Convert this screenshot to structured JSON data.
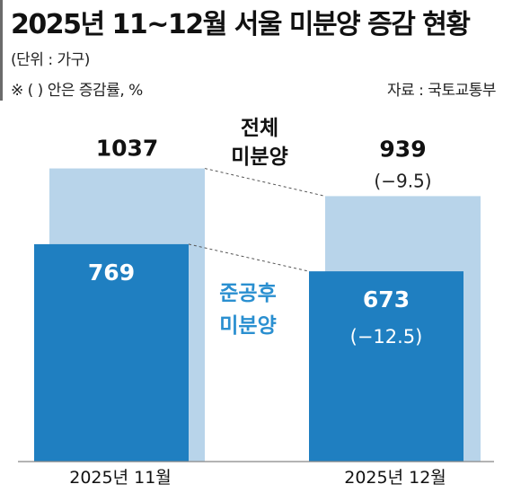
{
  "header": {
    "title": "2025년 11~12월 서울 미분양 증감 현황",
    "unit": "(단위 : 가구)",
    "note": "※ (   ) 안은 증감률, %",
    "source": "자료 : 국토교통부"
  },
  "colors": {
    "total": "#b8d4ea",
    "after_completion": "#1f7fc1",
    "after_completion_label": "#2a8fd0",
    "axis": "#888888"
  },
  "chart_data": {
    "type": "bar",
    "categories": [
      "2025년 11월",
      "2025년 12월"
    ],
    "series": [
      {
        "name": "전체 미분양",
        "label_lines": [
          "전체",
          "미분양"
        ],
        "values": [
          1037,
          939
        ],
        "change": [
          null,
          "(−9.5)"
        ]
      },
      {
        "name": "준공후 미분양",
        "label_lines": [
          "준공후",
          "미분양"
        ],
        "values": [
          769,
          673
        ],
        "change": [
          null,
          "(−12.5)"
        ]
      }
    ],
    "xlabel": "",
    "ylabel": "",
    "ylim": [
      0,
      1150
    ],
    "grid": false,
    "legend": "inline between bars"
  }
}
